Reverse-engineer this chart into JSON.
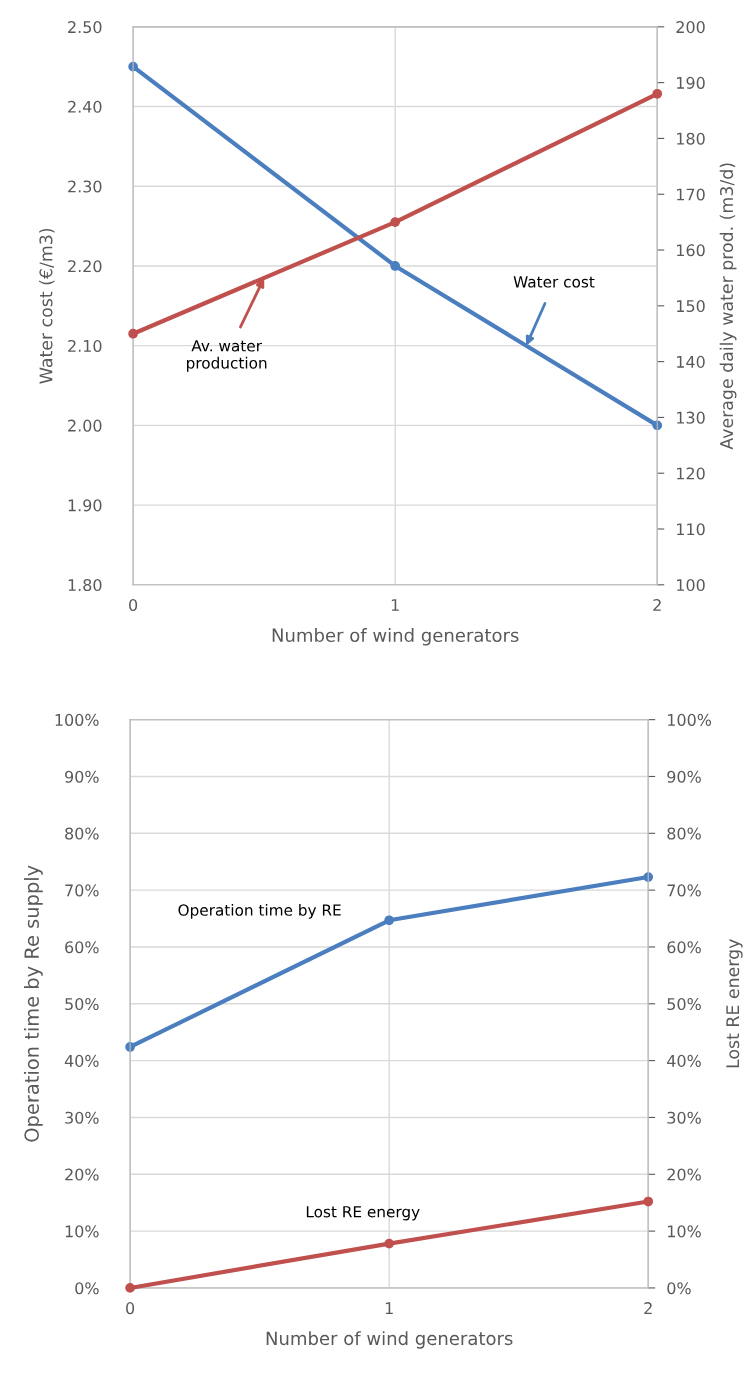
{
  "chart_data": [
    {
      "type": "line",
      "xlabel": "Number of wind generators",
      "ylabel": "Water cost (€/m3)",
      "y2label": "Average daily water prod. (m3/d)",
      "x": [
        0,
        1,
        2
      ],
      "xlim": [
        0,
        2
      ],
      "xticks": [
        0,
        1,
        2
      ],
      "ylim": [
        1.8,
        2.5
      ],
      "yticks": [
        {
          "value": 1.8,
          "label": "1.80"
        },
        {
          "value": 1.9,
          "label": "1.90"
        },
        {
          "value": 2.0,
          "label": "2.00"
        },
        {
          "value": 2.1,
          "label": "2.10"
        },
        {
          "value": 2.2,
          "label": "2.20"
        },
        {
          "value": 2.3,
          "label": "2.30"
        },
        {
          "value": 2.4,
          "label": "2.40"
        },
        {
          "value": 2.5,
          "label": "2.50"
        }
      ],
      "y2lim": [
        100,
        200
      ],
      "y2ticks": [
        100,
        110,
        120,
        130,
        140,
        150,
        160,
        170,
        180,
        190,
        200
      ],
      "series": [
        {
          "color": "#4a7ebf",
          "values": [
            2.45,
            2.2,
            2.0
          ]
        },
        {
          "color": "#c0504d",
          "values": [
            145,
            165,
            188
          ],
          "axis": "y2"
        }
      ],
      "annotations": [
        {
          "text": "Water cost",
          "x": 1.5,
          "y": 2.1
        },
        {
          "text": "Av. water\nproduction",
          "x": 0.5,
          "y": 2.185
        }
      ],
      "grid": true,
      "marker": "circle",
      "line_style": "solid",
      "legend": false
    },
    {
      "type": "line",
      "xlabel": "Number of wind generators",
      "ylabel": "Operation time by Re supply",
      "y2label": "Lost RE energy",
      "x": [
        0,
        1,
        2
      ],
      "xlim": [
        0,
        2
      ],
      "xticks": [
        0,
        1,
        2
      ],
      "ylim": [
        0,
        100
      ],
      "yticks": [
        {
          "value": 0,
          "label": "0%"
        },
        {
          "value": 10,
          "label": "10%"
        },
        {
          "value": 20,
          "label": "20%"
        },
        {
          "value": 30,
          "label": "30%"
        },
        {
          "value": 40,
          "label": "40%"
        },
        {
          "value": 50,
          "label": "50%"
        },
        {
          "value": 60,
          "label": "60%"
        },
        {
          "value": 70,
          "label": "70%"
        },
        {
          "value": 80,
          "label": "80%"
        },
        {
          "value": 90,
          "label": "90%"
        },
        {
          "value": 100,
          "label": "100%"
        }
      ],
      "y2lim": [
        0,
        100
      ],
      "y2ticks": [
        {
          "value": 0,
          "label": "0%"
        },
        {
          "value": 10,
          "label": "10%"
        },
        {
          "value": 20,
          "label": "20%"
        },
        {
          "value": 30,
          "label": "30%"
        },
        {
          "value": 40,
          "label": "40%"
        },
        {
          "value": 50,
          "label": "50%"
        },
        {
          "value": 60,
          "label": "60%"
        },
        {
          "value": 70,
          "label": "70%"
        },
        {
          "value": 80,
          "label": "80%"
        },
        {
          "value": 90,
          "label": "90%"
        },
        {
          "value": 100,
          "label": "100%"
        }
      ],
      "series": [
        {
          "name": "Operation time by RE",
          "color": "#4a7ebf",
          "values": [
            42.4,
            64.7,
            72.3
          ]
        },
        {
          "name": "Lost RE energy",
          "color": "#c0504d",
          "values": [
            0,
            7.8,
            15.2
          ],
          "axis": "y2"
        }
      ],
      "grid": true,
      "marker": "circle",
      "line_style": "solid",
      "legend": false
    }
  ]
}
